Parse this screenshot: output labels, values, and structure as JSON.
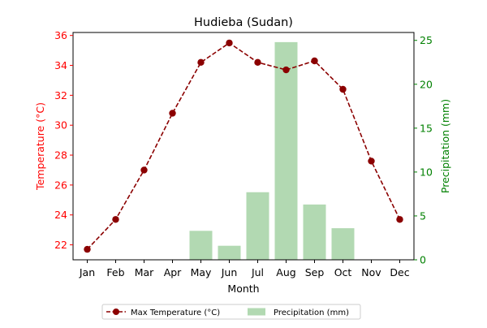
{
  "chart_data": {
    "type": "bar",
    "title": "Hudieba (Sudan)",
    "xlabel": "Month",
    "categories": [
      "Jan",
      "Feb",
      "Mar",
      "Apr",
      "May",
      "Jun",
      "Jul",
      "Aug",
      "Sep",
      "Oct",
      "Nov",
      "Dec"
    ],
    "left_axis": {
      "label": "Temperature (°C)",
      "color": "#ff0000",
      "ylim": [
        21,
        36.2
      ],
      "ticks": [
        22,
        24,
        26,
        28,
        30,
        32,
        34,
        36
      ]
    },
    "right_axis": {
      "label": "Precipitation (mm)",
      "color": "#008000",
      "ylim": [
        0,
        25.9
      ],
      "ticks": [
        0,
        5,
        10,
        15,
        20,
        25
      ]
    },
    "series": [
      {
        "name": "Max Temperature (°C)",
        "kind": "line",
        "axis": "left",
        "style": "dashed",
        "marker": "circle",
        "color": "#8b0000",
        "values": [
          21.7,
          23.7,
          27.0,
          30.8,
          34.2,
          35.5,
          34.2,
          33.7,
          34.3,
          32.4,
          27.6,
          23.7
        ]
      },
      {
        "name": "Precipitation (mm)",
        "kind": "bar",
        "axis": "right",
        "color": "#b2d9b2",
        "values": [
          0,
          0,
          0,
          0,
          3.3,
          1.6,
          7.7,
          24.8,
          6.3,
          3.6,
          0,
          0
        ]
      }
    ],
    "legend": {
      "placement": "bottom-center",
      "entries": [
        "Max Temperature (°C)",
        "Precipitation (mm)"
      ]
    },
    "grid": false
  }
}
